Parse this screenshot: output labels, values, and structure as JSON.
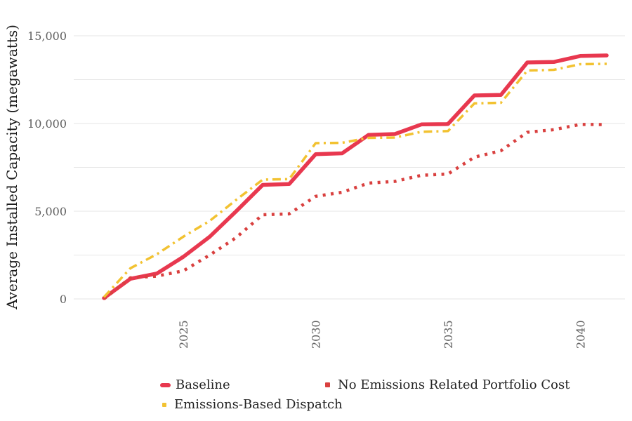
{
  "chart": {
    "y_axis": {
      "title": "Average Installed Capacity (megawatts)",
      "tick_labels": [
        "0",
        "5,000",
        "10,000",
        "15,000"
      ],
      "tick_values": [
        0,
        5000,
        10000,
        15000
      ],
      "minor_step": 2500,
      "max": 15000
    },
    "x_axis": {
      "tick_labels": [
        "2025",
        "2030",
        "2035",
        "2040"
      ],
      "tick_values": [
        2025,
        2030,
        2035,
        2040
      ]
    }
  },
  "legend": {
    "items": [
      {
        "label": "Baseline",
        "marker": "thick-line",
        "color": "#e8384f"
      },
      {
        "label": "No Emissions Related Portfolio Cost",
        "marker": "square",
        "color": "#d9403f"
      },
      {
        "label": "Emissions-Based Dispatch",
        "marker": "square",
        "color": "#f2c231"
      }
    ]
  },
  "colors": {
    "grid": "#e6e6e6",
    "tick_text": "#606060",
    "axis_title_text": "#1c1c1c",
    "baseline": "#e8384f",
    "no_emissions": "#d9403f",
    "emissions_dispatch": "#f2c231"
  },
  "chart_data": {
    "type": "line",
    "title": "",
    "xlabel": "",
    "ylabel": "Average Installed Capacity (megawatts)",
    "ylim": [
      0,
      15000
    ],
    "xlim": [
      2021.7,
      2041.7
    ],
    "grid": "horizontal-only",
    "legend_position": "bottom",
    "x": [
      2022,
      2023,
      2024,
      2025,
      2026,
      2027,
      2028,
      2029,
      2030,
      2031,
      2032,
      2033,
      2034,
      2035,
      2036,
      2037,
      2038,
      2039,
      2040,
      2041
    ],
    "series": [
      {
        "name": "Baseline",
        "color": "#e8384f",
        "style": "solid",
        "values": [
          50,
          1150,
          1450,
          2400,
          3550,
          5000,
          6500,
          6550,
          8250,
          8300,
          9350,
          9400,
          9950,
          9970,
          11600,
          11630,
          13480,
          13510,
          13850,
          13880
        ]
      },
      {
        "name": "No Emissions Related Portfolio Cost",
        "color": "#d9403f",
        "style": "dotted",
        "values": [
          0,
          1200,
          1300,
          1600,
          2500,
          3500,
          4800,
          4850,
          5850,
          6080,
          6600,
          6700,
          7050,
          7120,
          8080,
          8450,
          9500,
          9650,
          9950,
          9940
        ]
      },
      {
        "name": "Emissions-Based Dispatch",
        "color": "#f2c231",
        "style": "dash-dot",
        "values": [
          100,
          1750,
          2550,
          3550,
          4450,
          5650,
          6800,
          6830,
          8880,
          8900,
          9180,
          9200,
          9530,
          9570,
          11150,
          11180,
          13020,
          13060,
          13380,
          13400
        ]
      }
    ]
  }
}
